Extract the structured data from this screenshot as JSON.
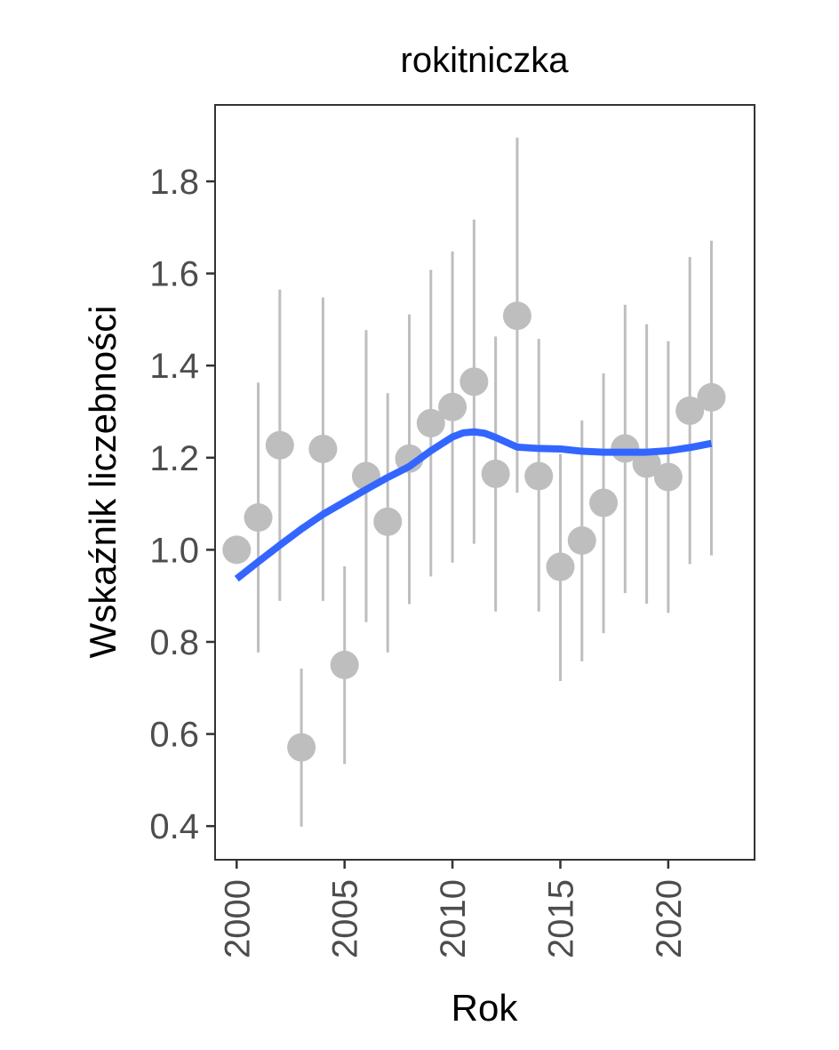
{
  "chart_data": {
    "type": "scatter",
    "title": "rokitniczka",
    "xlabel": "Rok",
    "ylabel": "Wskaźnik liczebności",
    "xlim": [
      1999,
      2024
    ],
    "ylim": [
      0.327,
      1.966
    ],
    "x_ticks": [
      2000,
      2005,
      2010,
      2015,
      2020
    ],
    "x_tick_labels": [
      "2000",
      "2005",
      "2010",
      "2015",
      "2020"
    ],
    "y_ticks": [
      0.4,
      0.6,
      0.8,
      1.0,
      1.2,
      1.4,
      1.6,
      1.8
    ],
    "y_tick_labels": [
      "0.4",
      "0.6",
      "0.8",
      "1.0",
      "1.2",
      "1.4",
      "1.6",
      "1.8"
    ],
    "grid": false,
    "legend": "none",
    "colors": {
      "points": "#bebebe",
      "error_bars": "#bebebe",
      "trend": "#3366ff"
    },
    "series": [
      {
        "kind": "points_with_error_bars",
        "x": [
          2000,
          2001,
          2002,
          2003,
          2004,
          2005,
          2006,
          2007,
          2008,
          2009,
          2010,
          2011,
          2012,
          2013,
          2014,
          2015,
          2016,
          2017,
          2018,
          2019,
          2020,
          2021,
          2022
        ],
        "y": [
          1.0,
          1.07,
          1.227,
          0.571,
          1.219,
          0.75,
          1.16,
          1.061,
          1.198,
          1.275,
          1.31,
          1.365,
          1.165,
          1.508,
          1.16,
          0.963,
          1.02,
          1.102,
          1.22,
          1.187,
          1.158,
          1.302,
          1.331
        ],
        "lower": [
          null,
          0.777,
          0.889,
          0.399,
          0.889,
          0.535,
          0.843,
          0.777,
          0.882,
          0.942,
          0.972,
          1.013,
          0.866,
          1.124,
          0.866,
          0.715,
          0.758,
          0.819,
          0.906,
          0.883,
          0.863,
          0.969,
          0.988
        ],
        "upper": [
          null,
          1.363,
          1.565,
          0.742,
          1.548,
          0.964,
          1.477,
          1.34,
          1.511,
          1.608,
          1.648,
          1.717,
          1.463,
          1.895,
          1.458,
          1.208,
          1.281,
          1.383,
          1.532,
          1.49,
          1.453,
          1.636,
          1.671
        ]
      },
      {
        "kind": "smooth_line",
        "x": [
          2000,
          2001,
          2002,
          2003,
          2004,
          2005,
          2006,
          2007,
          2008,
          2009,
          2010,
          2010.5,
          2011,
          2011.5,
          2012,
          2013,
          2014,
          2015,
          2016,
          2017,
          2018,
          2019,
          2020,
          2021,
          2022
        ],
        "y": [
          0.937,
          0.974,
          1.01,
          1.045,
          1.077,
          1.104,
          1.131,
          1.157,
          1.181,
          1.215,
          1.245,
          1.254,
          1.256,
          1.253,
          1.244,
          1.223,
          1.22,
          1.219,
          1.214,
          1.212,
          1.212,
          1.212,
          1.215,
          1.222,
          1.231
        ]
      }
    ]
  }
}
